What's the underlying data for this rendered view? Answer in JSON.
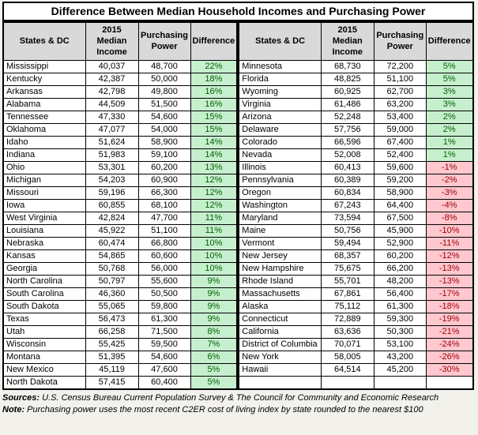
{
  "chart_data": {
    "type": "table",
    "title": "Difference Between Median Household Incomes and Purchasing Power",
    "columns": [
      "States & DC",
      "2015 Median Income",
      "Purchasing Power",
      "Difference"
    ],
    "tables": [
      {
        "rows": [
          [
            "Mississippi",
            "40,037",
            "48,700",
            "22%"
          ],
          [
            "Kentucky",
            "42,387",
            "50,000",
            "18%"
          ],
          [
            "Arkansas",
            "42,798",
            "49,800",
            "16%"
          ],
          [
            "Alabama",
            "44,509",
            "51,500",
            "16%"
          ],
          [
            "Tennessee",
            "47,330",
            "54,600",
            "15%"
          ],
          [
            "Oklahoma",
            "47,077",
            "54,000",
            "15%"
          ],
          [
            "Idaho",
            "51,624",
            "58,900",
            "14%"
          ],
          [
            "Indiana",
            "51,983",
            "59,100",
            "14%"
          ],
          [
            "Ohio",
            "53,301",
            "60,200",
            "13%"
          ],
          [
            "Michigan",
            "54,203",
            "60,900",
            "12%"
          ],
          [
            "Missouri",
            "59,196",
            "66,300",
            "12%"
          ],
          [
            "Iowa",
            "60,855",
            "68,100",
            "12%"
          ],
          [
            "West Virginia",
            "42,824",
            "47,700",
            "11%"
          ],
          [
            "Louisiana",
            "45,922",
            "51,100",
            "11%"
          ],
          [
            "Nebraska",
            "60,474",
            "66,800",
            "10%"
          ],
          [
            "Kansas",
            "54,865",
            "60,600",
            "10%"
          ],
          [
            "Georgia",
            "50,768",
            "56,000",
            "10%"
          ],
          [
            "North Carolina",
            "50,797",
            "55,600",
            "9%"
          ],
          [
            "South Carolina",
            "46,360",
            "50,500",
            "9%"
          ],
          [
            "South Dakota",
            "55,065",
            "59,800",
            "9%"
          ],
          [
            "Texas",
            "56,473",
            "61,300",
            "9%"
          ],
          [
            "Utah",
            "66,258",
            "71,500",
            "8%"
          ],
          [
            "Wisconsin",
            "55,425",
            "59,500",
            "7%"
          ],
          [
            "Montana",
            "51,395",
            "54,600",
            "6%"
          ],
          [
            "New Mexico",
            "45,119",
            "47,600",
            "5%"
          ],
          [
            "North Dakota",
            "57,415",
            "60,400",
            "5%"
          ]
        ]
      },
      {
        "rows": [
          [
            "Minnesota",
            "68,730",
            "72,200",
            "5%"
          ],
          [
            "Florida",
            "48,825",
            "51,100",
            "5%"
          ],
          [
            "Wyoming",
            "60,925",
            "62,700",
            "3%"
          ],
          [
            "Virginia",
            "61,486",
            "63,200",
            "3%"
          ],
          [
            "Arizona",
            "52,248",
            "53,400",
            "2%"
          ],
          [
            "Delaware",
            "57,756",
            "59,000",
            "2%"
          ],
          [
            "Colorado",
            "66,596",
            "67,400",
            "1%"
          ],
          [
            "Nevada",
            "52,008",
            "52,400",
            "1%"
          ],
          [
            "Illinois",
            "60,413",
            "59,600",
            "-1%"
          ],
          [
            "Pennsylvania",
            "60,389",
            "59,200",
            "-2%"
          ],
          [
            "Oregon",
            "60,834",
            "58,900",
            "-3%"
          ],
          [
            "Washington",
            "67,243",
            "64,400",
            "-4%"
          ],
          [
            "Maryland",
            "73,594",
            "67,500",
            "-8%"
          ],
          [
            "Maine",
            "50,756",
            "45,900",
            "-10%"
          ],
          [
            "Vermont",
            "59,494",
            "52,900",
            "-11%"
          ],
          [
            "New Jersey",
            "68,357",
            "60,200",
            "-12%"
          ],
          [
            "New Hampshire",
            "75,675",
            "66,200",
            "-13%"
          ],
          [
            "Rhode Island",
            "55,701",
            "48,200",
            "-13%"
          ],
          [
            "Massachusetts",
            "67,861",
            "56,400",
            "-17%"
          ],
          [
            "Alaska",
            "75,112",
            "61,300",
            "-18%"
          ],
          [
            "Connecticut",
            "72,889",
            "59,300",
            "-19%"
          ],
          [
            "California",
            "63,636",
            "50,300",
            "-21%"
          ],
          [
            "District of Columbia",
            "70,071",
            "53,100",
            "-24%"
          ],
          [
            "New York",
            "58,005",
            "43,200",
            "-26%"
          ],
          [
            "Hawaii",
            "64,514",
            "45,200",
            "-30%"
          ],
          [
            "",
            "",
            "",
            ""
          ]
        ]
      }
    ],
    "legend": {
      "positive_bg": "#c6efce",
      "positive_text": "#006100",
      "negative_bg": "#ffc7ce",
      "negative_text": "#9c0006",
      "header_bg": "#d9d9d9"
    }
  },
  "footer": {
    "sources_label": "Sources:",
    "sources_text": " U.S. Census Bureau Current Population Survey & The Council for Community and Economic Research",
    "note_label": "Note:",
    "note_text": " Purchasing power uses the most recent C2ER cost of living index by state rounded to the nearest $100"
  }
}
